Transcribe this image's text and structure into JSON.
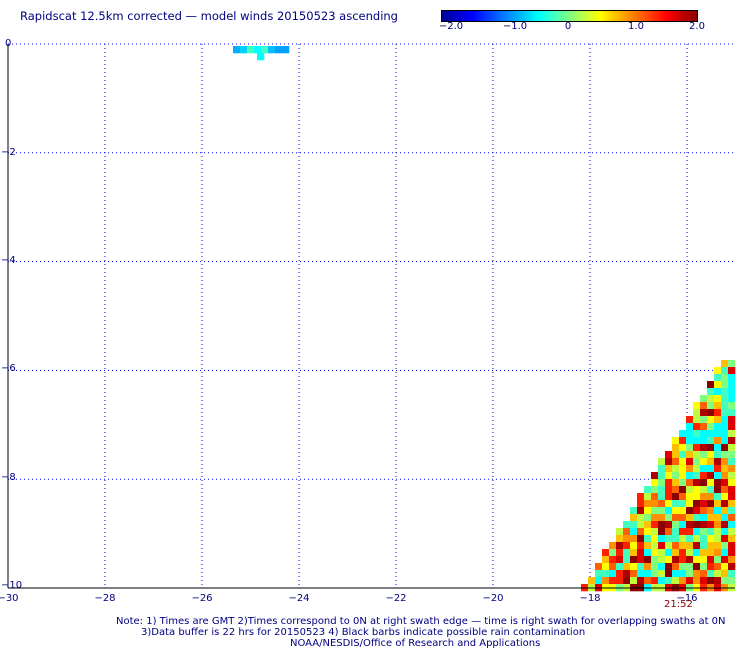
{
  "title": "Rapidscat 12.5km corrected — model winds 20150523 ascending",
  "colorbar": {
    "labels": [
      "−2.0",
      "−1.0",
      "0",
      "1.0",
      "2.0"
    ],
    "range": [
      -2.0,
      2.0
    ]
  },
  "axes": {
    "lon_range": [
      -30,
      -15
    ],
    "lat_range": [
      -10,
      0
    ],
    "y_ticks": [
      "0",
      "−2",
      "−4",
      "−6",
      "−8",
      "−10"
    ],
    "x_ticks": [
      "−30",
      "−28",
      "−26",
      "−24",
      "−22",
      "−20",
      "−18",
      "−16"
    ]
  },
  "swath_time": "21:52",
  "notes": {
    "line1": "Note: 1) Times are GMT 2)Times correspond to 0N at right swath edge — time is right swath for overlapping swaths at 0N",
    "line2": "3)Data buffer is 22 hrs for 20150523 4) Black barbs indicate possible rain contamination",
    "line3": "NOAA/NESDIS/Office of Research and Applications"
  },
  "colors": {
    "text": "#000080",
    "grid": "#0000ff",
    "time": "#8b0000"
  }
}
